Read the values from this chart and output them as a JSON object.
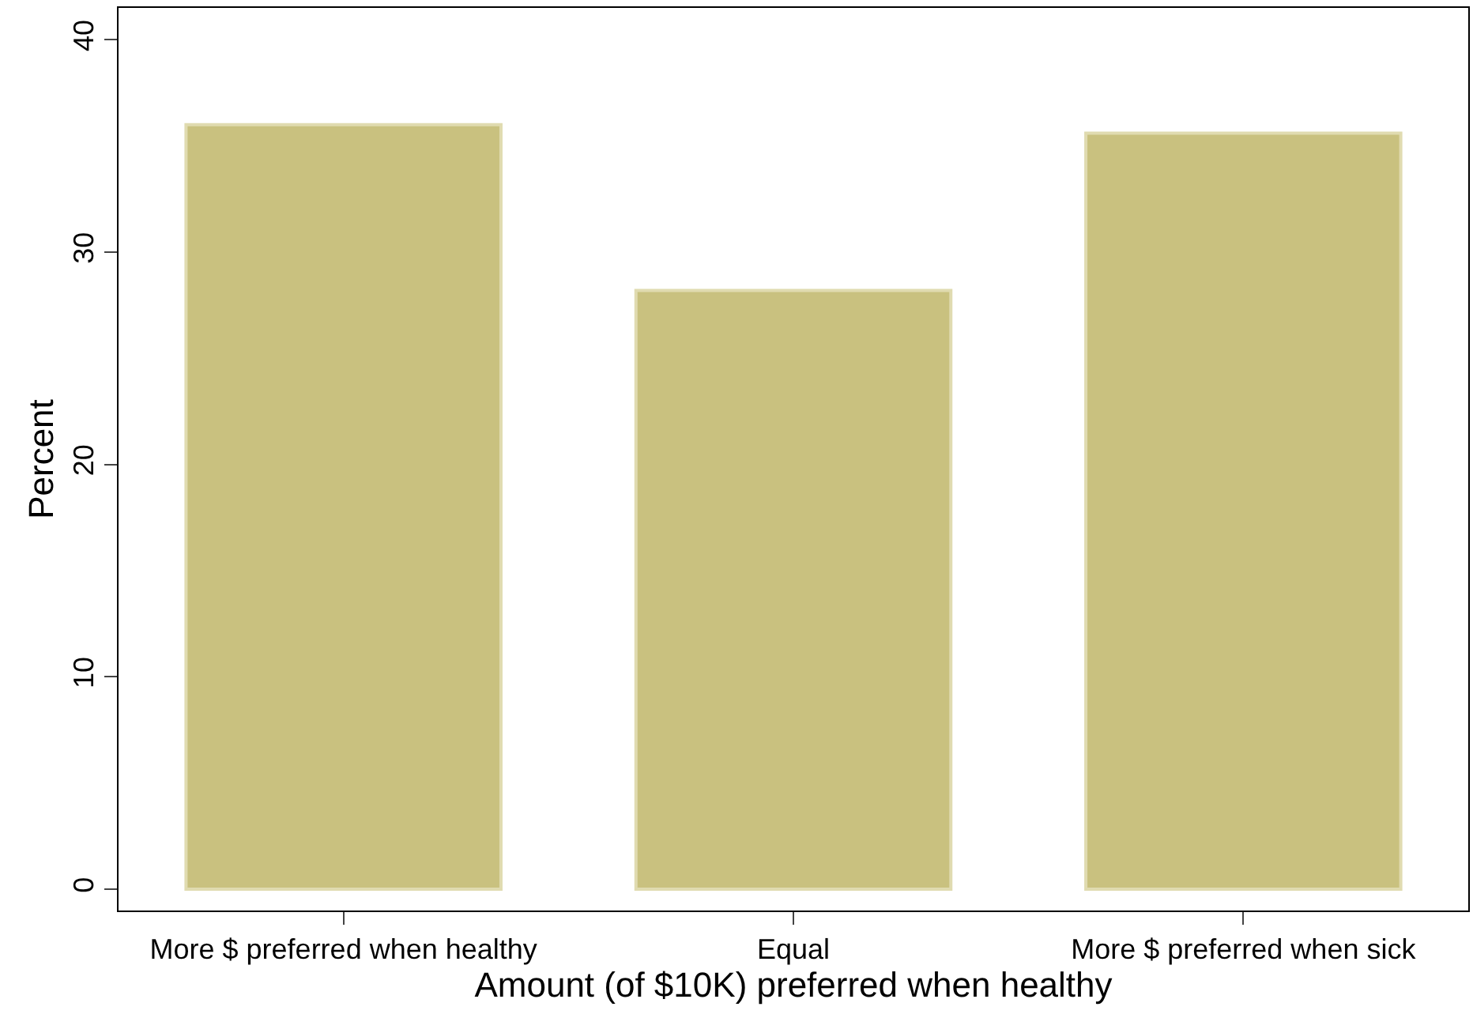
{
  "chart_data": {
    "type": "bar",
    "xlabel": "Amount (of $10K) preferred when healthy",
    "ylabel": "Percent",
    "categories": [
      "More $ preferred when healthy",
      "Equal",
      "More $ preferred when sick"
    ],
    "values": [
      36.0,
      28.2,
      35.6
    ],
    "color": "#c9c17f",
    "ylim": [
      -1,
      41.5
    ],
    "yticks": [
      0,
      10,
      20,
      30,
      40
    ]
  }
}
